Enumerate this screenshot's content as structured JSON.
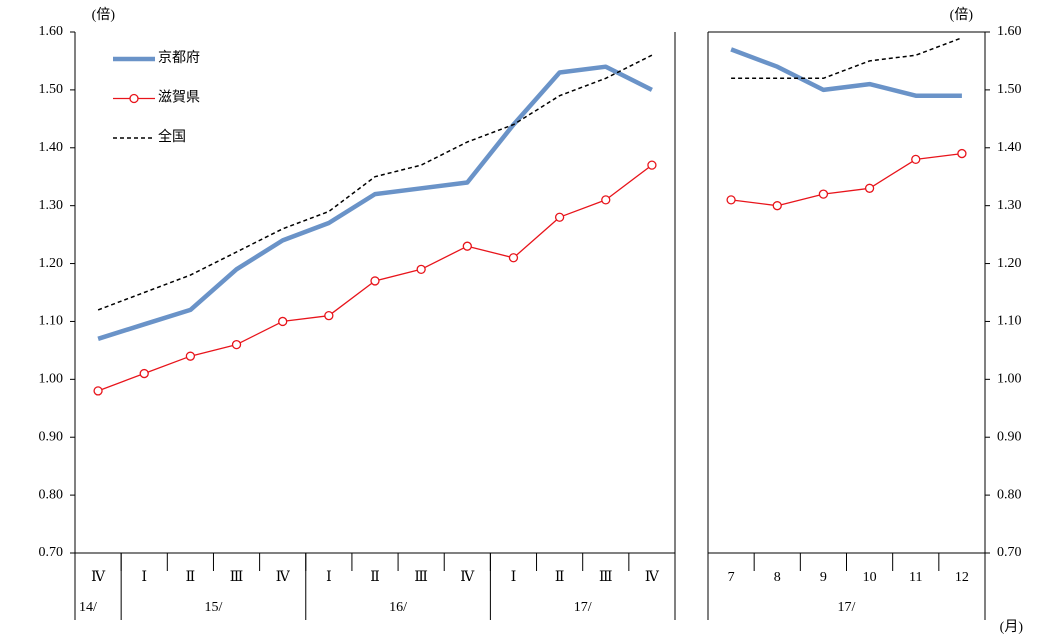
{
  "chart_data": [
    {
      "type": "line",
      "y_unit": "(倍)",
      "y_axis_side": "left",
      "legend": "top-left",
      "groups": [
        {
          "label": "14/",
          "categories": [
            "Ⅳ"
          ]
        },
        {
          "label": "15/",
          "categories": [
            "Ⅰ",
            "Ⅱ",
            "Ⅲ",
            "Ⅳ"
          ]
        },
        {
          "label": "16/",
          "categories": [
            "Ⅰ",
            "Ⅱ",
            "Ⅲ",
            "Ⅳ"
          ]
        },
        {
          "label": "17/",
          "categories": [
            "Ⅰ",
            "Ⅱ",
            "Ⅲ",
            "Ⅳ"
          ]
        }
      ],
      "ylim": [
        0.7,
        1.6
      ],
      "yticks": [
        {
          "value": 0.7,
          "label": "0.70"
        },
        {
          "value": 0.8,
          "label": "0.80"
        },
        {
          "value": 0.9,
          "label": "0.90"
        },
        {
          "value": 1.0,
          "label": "1.00"
        },
        {
          "value": 1.1,
          "label": "1.10"
        },
        {
          "value": 1.2,
          "label": "1.20"
        },
        {
          "value": 1.3,
          "label": "1.30"
        },
        {
          "value": 1.4,
          "label": "1.40"
        },
        {
          "value": 1.5,
          "label": "1.50"
        },
        {
          "value": 1.6,
          "label": "1.60"
        }
      ],
      "series": [
        {
          "name": "京都府",
          "color": "#6a93c8",
          "line_style": "thick",
          "values": [
            1.07,
            1.095,
            1.12,
            1.19,
            1.24,
            1.27,
            1.32,
            1.33,
            1.34,
            1.44,
            1.53,
            1.54,
            1.5
          ]
        },
        {
          "name": "滋賀県",
          "color": "#e8141b",
          "line_style": "solid",
          "marker": "circle",
          "values": [
            0.98,
            1.01,
            1.04,
            1.06,
            1.1,
            1.11,
            1.17,
            1.19,
            1.23,
            1.21,
            1.28,
            1.31,
            1.37
          ]
        },
        {
          "name": "全国",
          "color": "#000000",
          "line_style": "dashed",
          "values": [
            1.12,
            1.15,
            1.18,
            1.22,
            1.26,
            1.29,
            1.35,
            1.37,
            1.41,
            1.44,
            1.49,
            1.52,
            1.56
          ]
        }
      ]
    },
    {
      "type": "line",
      "y_unit": "(倍)",
      "y_axis_side": "right",
      "x_unit": "(月)",
      "groups": [
        {
          "label": "17/",
          "categories": [
            "7",
            "8",
            "9",
            "10",
            "11",
            "12"
          ]
        }
      ],
      "ylim": [
        0.7,
        1.6
      ],
      "yticks": [
        {
          "value": 0.7,
          "label": "0.70"
        },
        {
          "value": 0.8,
          "label": "0.80"
        },
        {
          "value": 0.9,
          "label": "0.90"
        },
        {
          "value": 1.0,
          "label": "1.00"
        },
        {
          "value": 1.1,
          "label": "1.10"
        },
        {
          "value": 1.2,
          "label": "1.20"
        },
        {
          "value": 1.3,
          "label": "1.30"
        },
        {
          "value": 1.4,
          "label": "1.40"
        },
        {
          "value": 1.5,
          "label": "1.50"
        },
        {
          "value": 1.6,
          "label": "1.60"
        }
      ],
      "series": [
        {
          "color": "#6a93c8",
          "line_style": "thick",
          "values": [
            1.57,
            1.54,
            1.5,
            1.51,
            1.49,
            1.49
          ]
        },
        {
          "color": "#e8141b",
          "line_style": "solid",
          "marker": "circle",
          "values": [
            1.31,
            1.3,
            1.32,
            1.33,
            1.38,
            1.39
          ]
        },
        {
          "color": "#000000",
          "line_style": "dashed",
          "values": [
            1.52,
            1.52,
            1.52,
            1.55,
            1.56,
            1.59
          ]
        }
      ]
    }
  ]
}
